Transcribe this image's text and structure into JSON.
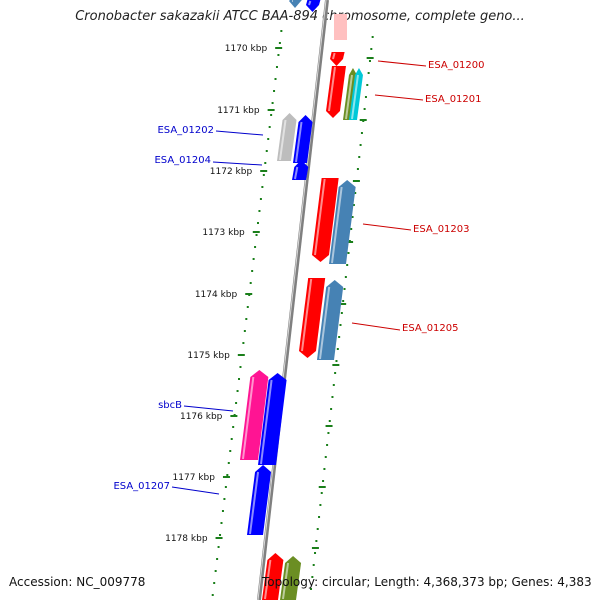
{
  "title": "Cronobacter sakazakii ATCC BAA-894 chromosome, complete geno...",
  "footer": {
    "accession": "Accession: NC_009778",
    "topology": "Topology: circular; Length: 4,368,373 bp; Genes: 4,383"
  },
  "ruler": [
    {
      "label": "1170 kbp",
      "kbp": 1170
    },
    {
      "label": "1171 kbp",
      "kbp": 1171
    },
    {
      "label": "1172 kbp",
      "kbp": 1172
    },
    {
      "label": "1173 kbp",
      "kbp": 1173
    },
    {
      "label": "1174 kbp",
      "kbp": 1174
    },
    {
      "label": "1175 kbp",
      "kbp": 1175
    },
    {
      "label": "1176 kbp",
      "kbp": 1176
    },
    {
      "label": "1177 kbp",
      "kbp": 1177
    },
    {
      "label": "1178 kbp",
      "kbp": 1178
    }
  ],
  "colors": {
    "forward_label": "#cc0000",
    "reverse_label": "#0000cc",
    "red": "#ff0000",
    "blue": "#0000ff",
    "steel": "#4682b4",
    "grey": "#bdbdbd",
    "pink": "#ff1493",
    "olive": "#6b8e23",
    "cyan": "#00c8d8",
    "backbone": "#808080",
    "ruler": "#1a7f1a"
  },
  "features": [
    {
      "name": "ESA_01200",
      "strand": "forward"
    },
    {
      "name": "ESA_01201",
      "strand": "forward"
    },
    {
      "name": "ESA_01202",
      "strand": "reverse"
    },
    {
      "name": "ESA_01204",
      "strand": "reverse"
    },
    {
      "name": "ESA_01203",
      "strand": "forward"
    },
    {
      "name": "ESA_01205",
      "strand": "forward"
    },
    {
      "name": "sbcB",
      "strand": "reverse"
    },
    {
      "name": "ESA_01207",
      "strand": "reverse"
    }
  ]
}
